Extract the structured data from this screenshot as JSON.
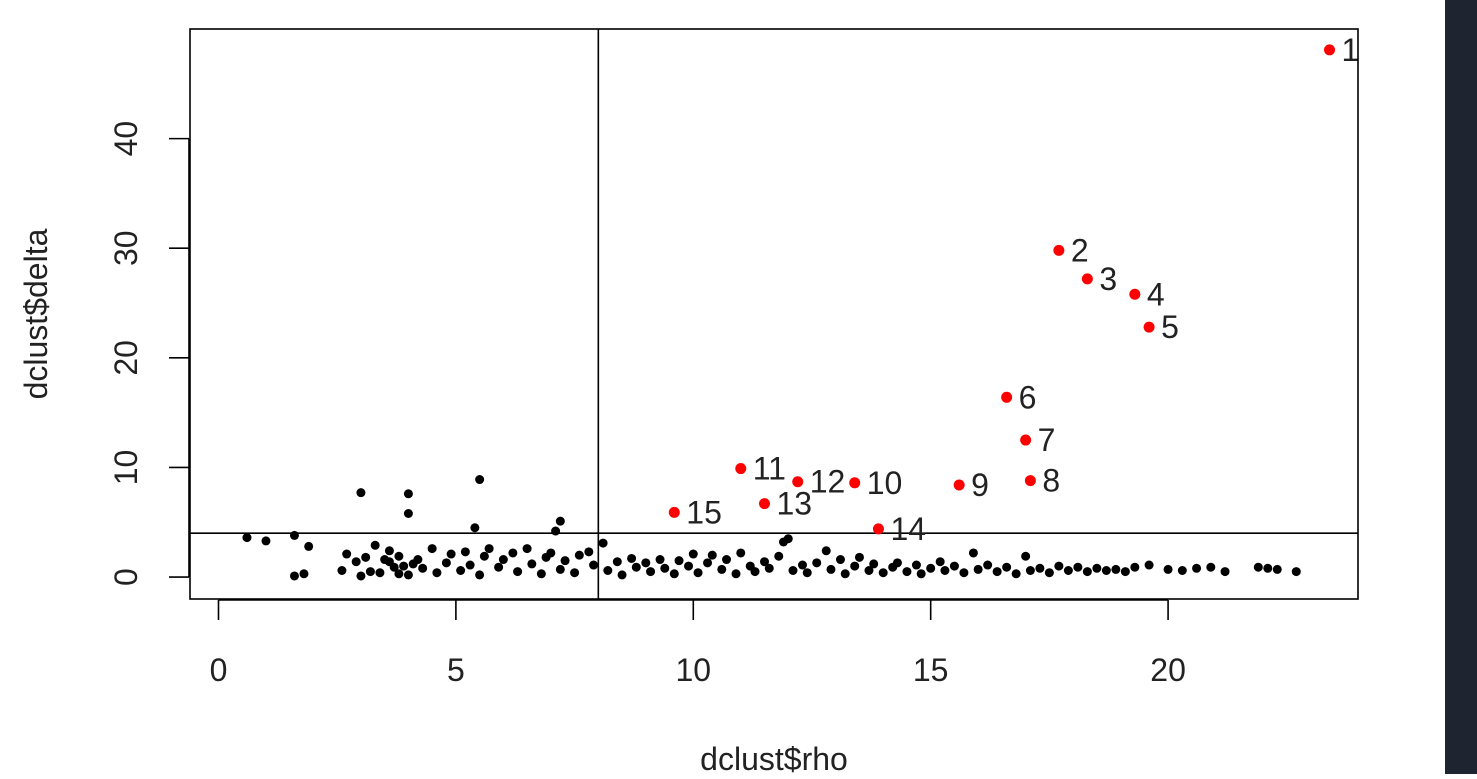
{
  "chart_data": {
    "type": "scatter",
    "title": "",
    "xlabel": "dclust$rho",
    "ylabel": "dclust$delta",
    "xlim": [
      -0.6,
      24
    ],
    "ylim": [
      -2,
      50
    ],
    "x_ticks": [
      0,
      5,
      10,
      15,
      20
    ],
    "y_ticks": [
      0,
      10,
      20,
      30,
      40
    ],
    "grid": false,
    "reference_lines": {
      "vertical_x": 8,
      "horizontal_y": 4
    },
    "colors": {
      "background_points": "#000000",
      "centers": "#ff0000",
      "frame": "#000000",
      "strip": "#1e2530"
    },
    "labeled_points": [
      {
        "label": "1",
        "x": 23.4,
        "y": 48.1
      },
      {
        "label": "2",
        "x": 17.7,
        "y": 29.8
      },
      {
        "label": "3",
        "x": 18.3,
        "y": 27.2
      },
      {
        "label": "4",
        "x": 19.3,
        "y": 25.8
      },
      {
        "label": "5",
        "x": 19.6,
        "y": 22.8
      },
      {
        "label": "6",
        "x": 16.6,
        "y": 16.4
      },
      {
        "label": "7",
        "x": 17.0,
        "y": 12.5
      },
      {
        "label": "8",
        "x": 17.1,
        "y": 8.8
      },
      {
        "label": "9",
        "x": 15.6,
        "y": 8.4
      },
      {
        "label": "10",
        "x": 13.4,
        "y": 8.6
      },
      {
        "label": "11",
        "x": 11.0,
        "y": 9.9
      },
      {
        "label": "12",
        "x": 12.2,
        "y": 8.7
      },
      {
        "label": "13",
        "x": 11.5,
        "y": 6.7
      },
      {
        "label": "14",
        "x": 13.9,
        "y": 4.4
      },
      {
        "label": "15",
        "x": 9.6,
        "y": 5.9
      }
    ],
    "other_points": [
      [
        0.6,
        3.6
      ],
      [
        1.0,
        3.3
      ],
      [
        1.6,
        3.8
      ],
      [
        1.9,
        2.8
      ],
      [
        1.6,
        0.1
      ],
      [
        1.8,
        0.3
      ],
      [
        3.0,
        7.7
      ],
      [
        4.0,
        7.6
      ],
      [
        4.0,
        5.8
      ],
      [
        5.5,
        8.9
      ],
      [
        5.4,
        4.5
      ],
      [
        7.2,
        5.1
      ],
      [
        7.1,
        4.2
      ],
      [
        2.6,
        0.6
      ],
      [
        2.7,
        2.1
      ],
      [
        2.9,
        1.4
      ],
      [
        3.0,
        0.1
      ],
      [
        3.2,
        0.5
      ],
      [
        3.3,
        2.9
      ],
      [
        3.1,
        1.8
      ],
      [
        3.5,
        1.6
      ],
      [
        3.6,
        2.4
      ],
      [
        3.7,
        0.9
      ],
      [
        3.8,
        1.9
      ],
      [
        4.0,
        0.2
      ],
      [
        4.1,
        1.2
      ],
      [
        3.4,
        0.4
      ],
      [
        3.9,
        1.0
      ],
      [
        3.6,
        1.4
      ],
      [
        3.8,
        0.3
      ],
      [
        4.2,
        1.6
      ],
      [
        4.3,
        0.8
      ],
      [
        4.5,
        2.6
      ],
      [
        4.6,
        0.4
      ],
      [
        4.8,
        1.3
      ],
      [
        4.9,
        2.1
      ],
      [
        5.1,
        0.6
      ],
      [
        5.2,
        2.3
      ],
      [
        5.3,
        1.1
      ],
      [
        5.5,
        0.2
      ],
      [
        5.6,
        1.9
      ],
      [
        5.7,
        2.6
      ],
      [
        5.9,
        0.9
      ],
      [
        6.0,
        1.6
      ],
      [
        6.2,
        2.2
      ],
      [
        6.3,
        0.5
      ],
      [
        6.5,
        2.6
      ],
      [
        6.6,
        1.2
      ],
      [
        6.8,
        0.3
      ],
      [
        6.9,
        1.8
      ],
      [
        7.0,
        2.2
      ],
      [
        7.2,
        0.7
      ],
      [
        7.3,
        1.5
      ],
      [
        7.5,
        0.4
      ],
      [
        7.6,
        2.0
      ],
      [
        7.8,
        2.3
      ],
      [
        7.9,
        1.1
      ],
      [
        8.1,
        3.1
      ],
      [
        8.2,
        0.6
      ],
      [
        8.4,
        1.4
      ],
      [
        8.5,
        0.2
      ],
      [
        8.7,
        1.7
      ],
      [
        8.8,
        0.9
      ],
      [
        9.0,
        1.3
      ],
      [
        9.1,
        0.5
      ],
      [
        9.3,
        1.6
      ],
      [
        9.4,
        0.8
      ],
      [
        9.6,
        0.3
      ],
      [
        9.7,
        1.5
      ],
      [
        9.9,
        1.0
      ],
      [
        10.0,
        2.1
      ],
      [
        10.1,
        0.4
      ],
      [
        10.3,
        1.3
      ],
      [
        10.4,
        2.0
      ],
      [
        10.6,
        0.7
      ],
      [
        10.7,
        1.6
      ],
      [
        10.9,
        0.3
      ],
      [
        11.0,
        2.2
      ],
      [
        11.2,
        1.0
      ],
      [
        11.3,
        0.5
      ],
      [
        11.5,
        1.4
      ],
      [
        11.6,
        0.8
      ],
      [
        11.8,
        1.9
      ],
      [
        11.9,
        3.2
      ],
      [
        12.0,
        3.5
      ],
      [
        12.1,
        0.6
      ],
      [
        12.3,
        1.1
      ],
      [
        12.4,
        0.4
      ],
      [
        12.6,
        1.3
      ],
      [
        12.8,
        2.4
      ],
      [
        12.9,
        0.7
      ],
      [
        13.1,
        1.6
      ],
      [
        13.2,
        0.3
      ],
      [
        13.4,
        1.0
      ],
      [
        13.5,
        1.8
      ],
      [
        13.7,
        0.6
      ],
      [
        13.8,
        1.2
      ],
      [
        14.0,
        0.4
      ],
      [
        14.2,
        0.9
      ],
      [
        14.3,
        1.3
      ],
      [
        14.5,
        0.5
      ],
      [
        14.7,
        1.1
      ],
      [
        14.8,
        0.3
      ],
      [
        15.0,
        0.8
      ],
      [
        15.2,
        1.4
      ],
      [
        15.3,
        0.6
      ],
      [
        15.5,
        1.0
      ],
      [
        15.7,
        0.4
      ],
      [
        15.9,
        2.2
      ],
      [
        16.0,
        0.7
      ],
      [
        16.2,
        1.1
      ],
      [
        16.4,
        0.5
      ],
      [
        16.6,
        0.9
      ],
      [
        16.8,
        0.3
      ],
      [
        17.0,
        1.9
      ],
      [
        17.1,
        0.6
      ],
      [
        17.3,
        0.8
      ],
      [
        17.5,
        0.4
      ],
      [
        17.7,
        1.0
      ],
      [
        17.9,
        0.6
      ],
      [
        18.1,
        0.9
      ],
      [
        18.3,
        0.5
      ],
      [
        18.5,
        0.8
      ],
      [
        18.7,
        0.6
      ],
      [
        18.9,
        0.7
      ],
      [
        19.1,
        0.5
      ],
      [
        19.3,
        0.9
      ],
      [
        19.6,
        1.1
      ],
      [
        20.0,
        0.7
      ],
      [
        20.3,
        0.6
      ],
      [
        20.6,
        0.8
      ],
      [
        20.9,
        0.9
      ],
      [
        21.2,
        0.5
      ],
      [
        21.9,
        0.9
      ],
      [
        22.1,
        0.8
      ],
      [
        22.3,
        0.7
      ],
      [
        22.7,
        0.5
      ]
    ]
  }
}
